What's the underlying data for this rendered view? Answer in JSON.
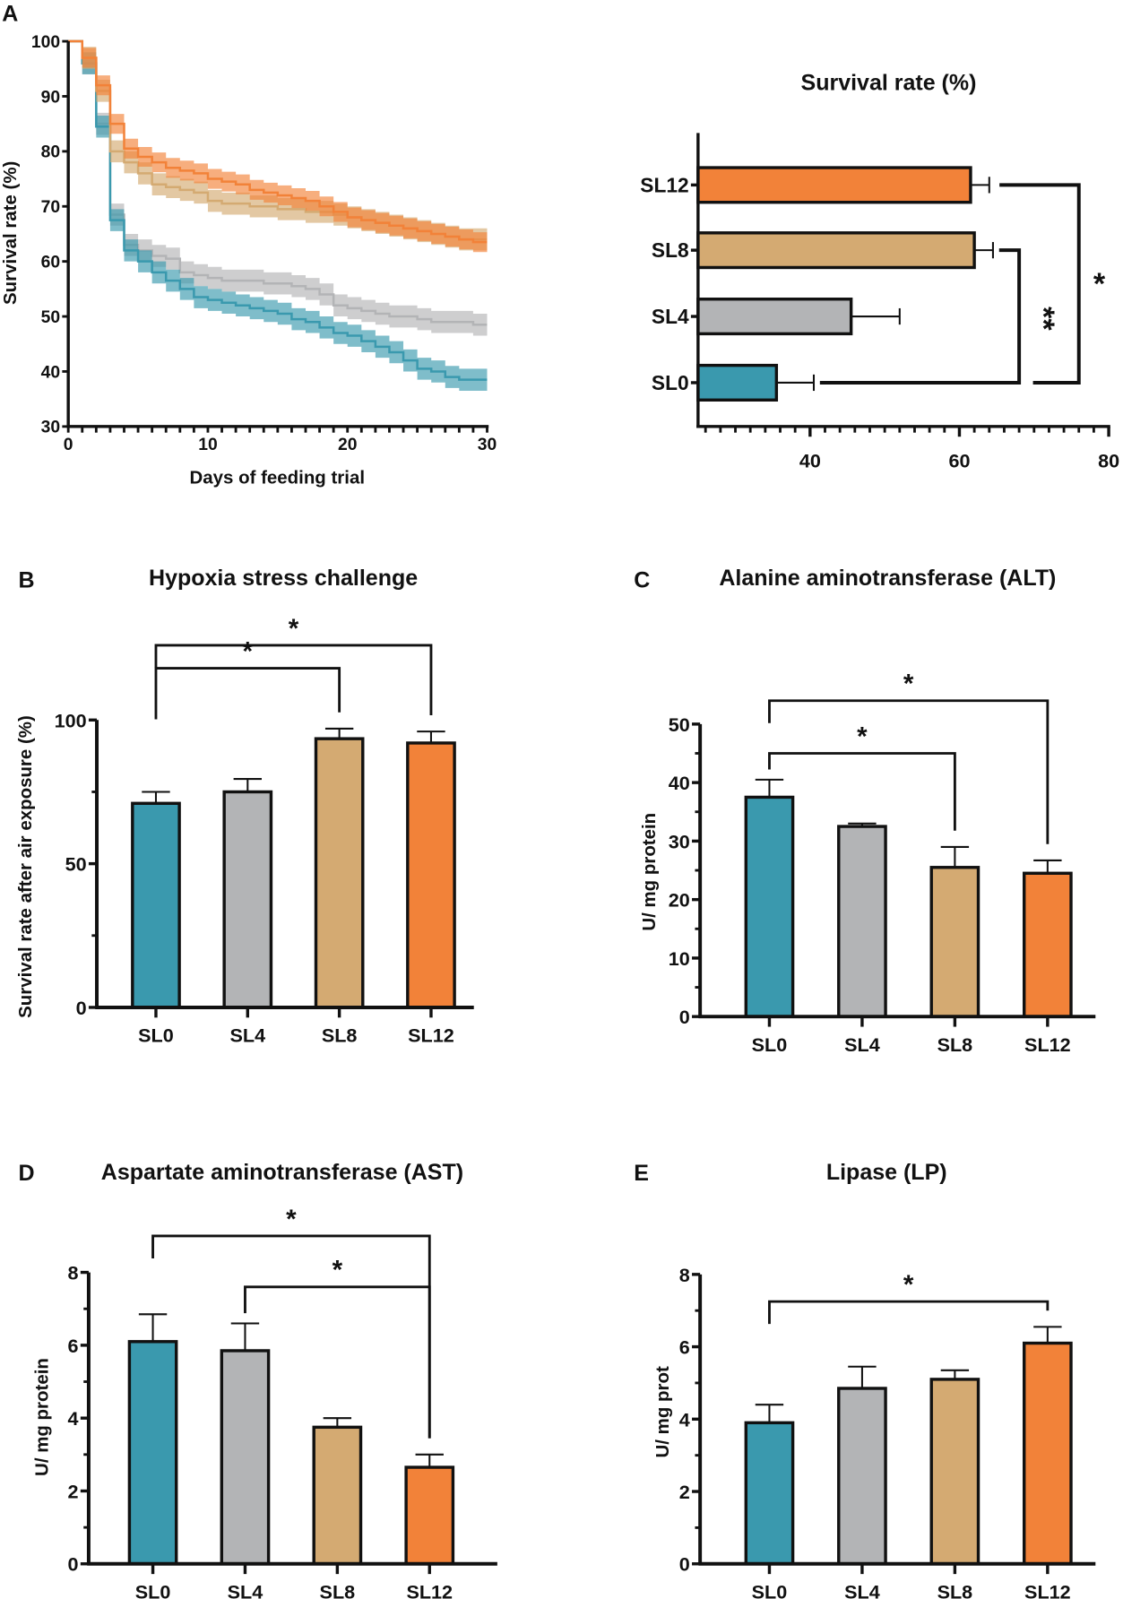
{
  "panels": {
    "A": {
      "letter": "A"
    },
    "B": {
      "letter": "B"
    },
    "C": {
      "letter": "C"
    },
    "D": {
      "letter": "D"
    },
    "E": {
      "letter": "E"
    }
  },
  "colors": {
    "SL0": "#3a99ae",
    "SL4": "#b3b4b6",
    "SL8": "#d4aa72",
    "SL12": "#f28239"
  },
  "chart_data": [
    {
      "type": "line",
      "title": "",
      "xlabel": "Days of feeding trial",
      "ylabel": "Survival rate (%)",
      "xlim": [
        0,
        30
      ],
      "ylim": [
        30,
        100
      ],
      "xticks": [
        0,
        10,
        20,
        30
      ],
      "yticks": [
        30,
        40,
        50,
        60,
        70,
        80,
        90,
        100
      ],
      "step": true,
      "x": [
        0,
        1,
        2,
        3,
        4,
        5,
        6,
        7,
        8,
        9,
        10,
        11,
        12,
        13,
        14,
        15,
        16,
        17,
        18,
        19,
        20,
        21,
        22,
        23,
        24,
        25,
        26,
        27,
        28,
        29,
        30
      ],
      "series": [
        {
          "group": "SL4",
          "band": 2,
          "values": [
            100,
            96,
            85,
            68.5,
            63,
            62,
            61,
            60.5,
            58,
            57.5,
            57,
            56.5,
            56.5,
            56.5,
            56,
            56,
            55.5,
            55,
            54,
            52,
            51.5,
            51,
            50.5,
            50,
            50,
            49.5,
            49,
            49,
            49,
            48.5,
            48.5
          ]
        },
        {
          "group": "SL0",
          "band": 2,
          "values": [
            100,
            96,
            84.5,
            67.5,
            62,
            60,
            58,
            56.5,
            55,
            53.5,
            53,
            52.5,
            52,
            51.5,
            51,
            50.5,
            49.5,
            49,
            48,
            47,
            46.5,
            45.5,
            44.5,
            43.5,
            42,
            40.5,
            40,
            39,
            38.5,
            38.5,
            38.5
          ]
        },
        {
          "group": "SL8",
          "band": 2,
          "values": [
            100,
            97,
            91,
            80,
            78,
            76,
            74,
            73.5,
            73,
            72.5,
            71,
            70.5,
            70.5,
            70,
            70,
            69.5,
            69.5,
            69,
            69,
            68.5,
            68,
            67.5,
            67,
            66.5,
            66,
            65.5,
            65,
            64.5,
            64,
            64,
            64
          ]
        },
        {
          "group": "SL12",
          "band": 1.8,
          "values": [
            100,
            97,
            92,
            85,
            80.5,
            79,
            78,
            77,
            76.5,
            76,
            75,
            74.5,
            74,
            73,
            72.5,
            72,
            71.5,
            71,
            70,
            69,
            68,
            67.5,
            67,
            66.5,
            66,
            65.5,
            65,
            64.5,
            64,
            63.5,
            63.5
          ]
        }
      ]
    },
    {
      "type": "bar",
      "orientation": "horizontal",
      "title": "Survival rate (%)",
      "categories": [
        "SL12",
        "SL8",
        "SL4",
        "SL0"
      ],
      "values": [
        61.5,
        62,
        45.5,
        35.5
      ],
      "errors": [
        2.5,
        2.5,
        6.5,
        5
      ],
      "xlim": [
        25,
        80
      ],
      "xticks": [
        40,
        60,
        80
      ],
      "significance": [
        {
          "pair": [
            "SL8",
            "SL0"
          ],
          "level": 68,
          "label": "**"
        },
        {
          "pair": [
            "SL12",
            "SL0"
          ],
          "level": 76,
          "label": "*"
        }
      ]
    },
    {
      "type": "bar",
      "title": "Hypoxia stress challenge",
      "ylabel": "Survival rate after air exposure (%)",
      "categories": [
        "SL0",
        "SL4",
        "SL8",
        "SL12"
      ],
      "values": [
        71,
        75,
        93.5,
        92
      ],
      "errors": [
        4,
        4.5,
        3.5,
        4
      ],
      "ylim": [
        0,
        100
      ],
      "yticks": [
        0,
        50,
        100
      ],
      "significance": [
        {
          "pair": [
            "SL0",
            "SL8"
          ],
          "level": 118,
          "label": "*"
        },
        {
          "pair": [
            "SL0",
            "SL12"
          ],
          "level": 126,
          "label": "*"
        }
      ]
    },
    {
      "type": "bar",
      "title": "Alanine aminotransferase (ALT)",
      "ylabel": "U/ mg protein",
      "categories": [
        "SL0",
        "SL4",
        "SL8",
        "SL12"
      ],
      "values": [
        37.5,
        32.5,
        25.5,
        24.5
      ],
      "errors": [
        3,
        0.5,
        3.5,
        2.2
      ],
      "ylim": [
        0,
        50
      ],
      "yticks": [
        0,
        10,
        20,
        30,
        40,
        50
      ],
      "significance": [
        {
          "pair": [
            "SL0",
            "SL8"
          ],
          "level": 45,
          "label": "*"
        },
        {
          "pair": [
            "SL0",
            "SL12"
          ],
          "level": 54,
          "label": "*"
        }
      ]
    },
    {
      "type": "bar",
      "title": "Aspartate aminotransferase (AST)",
      "ylabel": "U/ mg protein",
      "categories": [
        "SL0",
        "SL4",
        "SL8",
        "SL12"
      ],
      "values": [
        6.1,
        5.85,
        3.75,
        2.65
      ],
      "errors": [
        0.75,
        0.75,
        0.25,
        0.35
      ],
      "ylim": [
        0,
        8
      ],
      "yticks": [
        0,
        2,
        4,
        6,
        8
      ],
      "significance": [
        {
          "pair": [
            "SL4",
            "SL12"
          ],
          "level": 7.6,
          "label": "*"
        },
        {
          "pair": [
            "SL0",
            "SL12"
          ],
          "level": 9.0,
          "label": "*"
        }
      ]
    },
    {
      "type": "bar",
      "title": "Lipase (LP)",
      "ylabel": "U/ mg prot",
      "categories": [
        "SL0",
        "SL4",
        "SL8",
        "SL12"
      ],
      "values": [
        3.9,
        4.85,
        5.1,
        6.1
      ],
      "errors": [
        0.5,
        0.6,
        0.25,
        0.45
      ],
      "ylim": [
        0,
        8
      ],
      "yticks": [
        0,
        2,
        4,
        6,
        8
      ],
      "significance": [
        {
          "pair": [
            "SL0",
            "SL12"
          ],
          "level": 7.25,
          "label": "*"
        }
      ]
    }
  ]
}
